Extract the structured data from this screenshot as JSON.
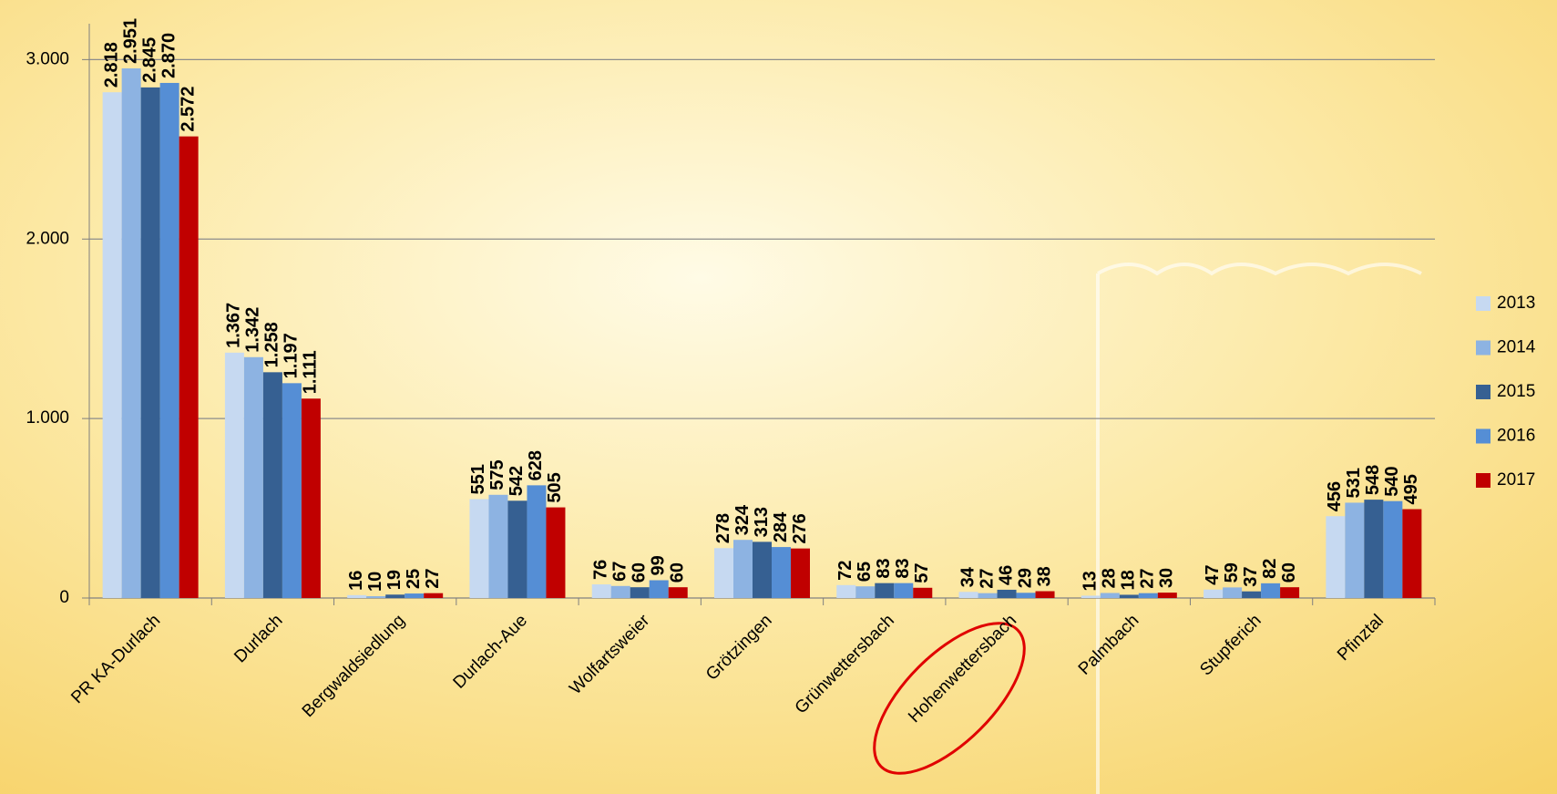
{
  "chart_data": {
    "type": "bar",
    "categories": [
      "PR KA-Durlach",
      "Durlach",
      "Bergwaldsiedlung",
      "Durlach-Aue",
      "Wolfartsweier",
      "Grötzingen",
      "Grünwettersbach",
      "Hohenwettersbach",
      "Palmbach",
      "Stupferich",
      "Pfinztal"
    ],
    "series": [
      {
        "name": "2013",
        "color": "#c6d9f1",
        "values": [
          2818,
          1367,
          16,
          551,
          76,
          278,
          72,
          34,
          13,
          47,
          456
        ],
        "value_labels": [
          "2.818",
          "1.367",
          "16",
          "551",
          "76",
          "278",
          "72",
          "34",
          "13",
          "47",
          "456"
        ]
      },
      {
        "name": "2014",
        "color": "#8db3e2",
        "values": [
          2951,
          1342,
          10,
          575,
          67,
          324,
          65,
          27,
          28,
          59,
          531
        ],
        "value_labels": [
          "2.951",
          "1.342",
          "10",
          "575",
          "67",
          "324",
          "65",
          "27",
          "28",
          "59",
          "531"
        ]
      },
      {
        "name": "2015",
        "color": "#366092",
        "values": [
          2845,
          1258,
          19,
          542,
          60,
          313,
          83,
          46,
          18,
          37,
          548
        ],
        "value_labels": [
          "2.845",
          "1.258",
          "19",
          "542",
          "60",
          "313",
          "83",
          "46",
          "18",
          "37",
          "548"
        ]
      },
      {
        "name": "2016",
        "color": "#558ed5",
        "values": [
          2870,
          1197,
          25,
          628,
          99,
          284,
          83,
          29,
          27,
          82,
          540
        ],
        "value_labels": [
          "2.870",
          "1.197",
          "25",
          "628",
          "99",
          "284",
          "83",
          "29",
          "27",
          "82",
          "540"
        ]
      },
      {
        "name": "2017",
        "color": "#c00000",
        "values": [
          2572,
          1111,
          27,
          505,
          60,
          276,
          57,
          38,
          30,
          60,
          495
        ],
        "value_labels": [
          "2.572",
          "1.111",
          "27",
          "505",
          "60",
          "276",
          "57",
          "38",
          "30",
          "60",
          "495"
        ]
      }
    ],
    "ylim": [
      0,
      3200
    ],
    "yticks": [
      0,
      {
        "value": 1000,
        "label": "1.000"
      },
      {
        "value": 2000,
        "label": "2.000"
      },
      {
        "value": 3000,
        "label": "3.000"
      }
    ],
    "grid": true,
    "legend": "right"
  }
}
